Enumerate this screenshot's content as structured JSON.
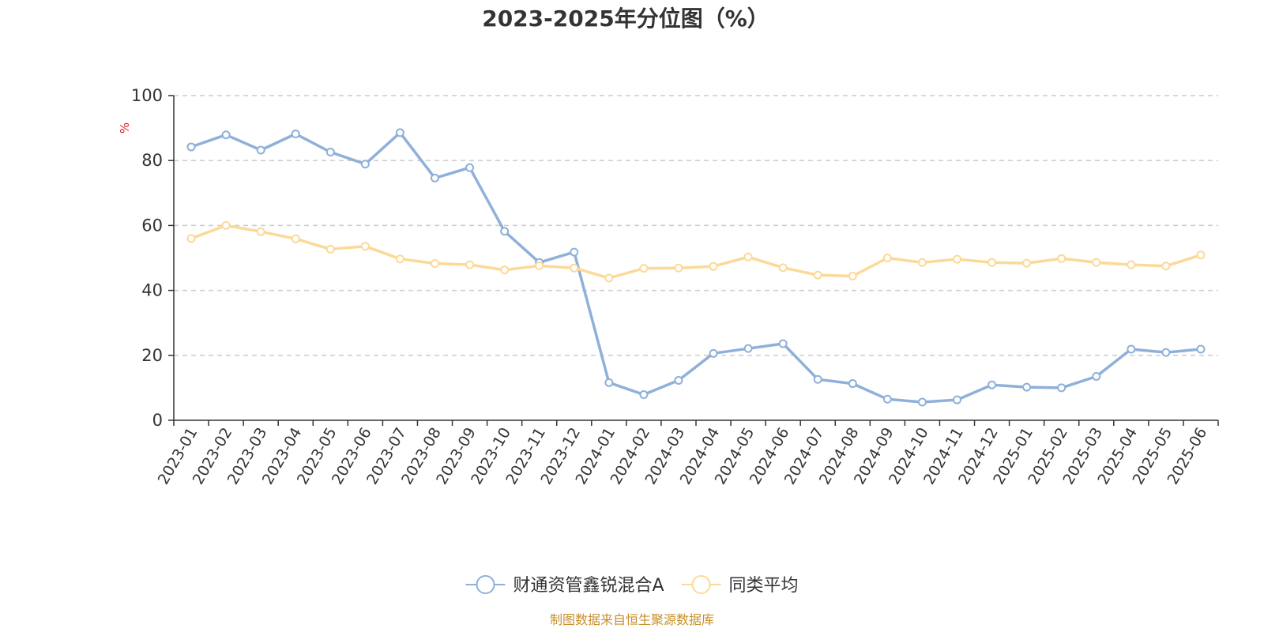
{
  "chart_data": {
    "type": "line",
    "title": "2023-2025年分位图（%）",
    "y_unit": "%",
    "ylim": [
      0,
      100
    ],
    "y_ticks": [
      0,
      20,
      40,
      60,
      80,
      100
    ],
    "grid": "horizontal-dashed",
    "legend_position": "bottom-center",
    "categories": [
      "2023-01",
      "2023-02",
      "2023-03",
      "2023-04",
      "2023-05",
      "2023-06",
      "2023-07",
      "2023-08",
      "2023-09",
      "2023-10",
      "2023-11",
      "2023-12",
      "2024-01",
      "2024-02",
      "2024-03",
      "2024-04",
      "2024-05",
      "2024-06",
      "2024-07",
      "2024-08",
      "2024-09",
      "2024-10",
      "2024-11",
      "2024-12",
      "2025-01",
      "2025-02",
      "2025-03",
      "2025-04",
      "2025-05",
      "2025-06"
    ],
    "series": [
      {
        "name": "财通资管鑫锐混合A",
        "color": "#8eb0d9",
        "values": [
          84.2,
          87.9,
          83.2,
          88.2,
          82.6,
          78.9,
          88.6,
          74.6,
          77.8,
          58.2,
          48.6,
          51.8,
          11.6,
          7.9,
          12.3,
          20.6,
          22.1,
          23.6,
          12.6,
          11.3,
          6.5,
          5.6,
          6.3,
          10.9,
          10.2,
          10.0,
          13.5,
          21.9,
          20.9,
          21.9
        ]
      },
      {
        "name": "同类平均",
        "color": "#fcd996",
        "values": [
          56.0,
          60.0,
          58.1,
          55.9,
          52.7,
          53.6,
          49.7,
          48.3,
          47.9,
          46.3,
          47.6,
          46.9,
          43.8,
          46.8,
          46.9,
          47.4,
          50.3,
          47.0,
          44.7,
          44.4,
          50.0,
          48.6,
          49.6,
          48.6,
          48.4,
          49.8,
          48.6,
          47.9,
          47.5,
          50.9
        ]
      }
    ]
  },
  "footer": {
    "source_text": "制图数据来自恒生聚源数据库",
    "source_color": "#c7902b"
  },
  "colors": {
    "unit_color": "#e02020",
    "axis_color": "#333333",
    "grid_color": "#cccccc"
  }
}
